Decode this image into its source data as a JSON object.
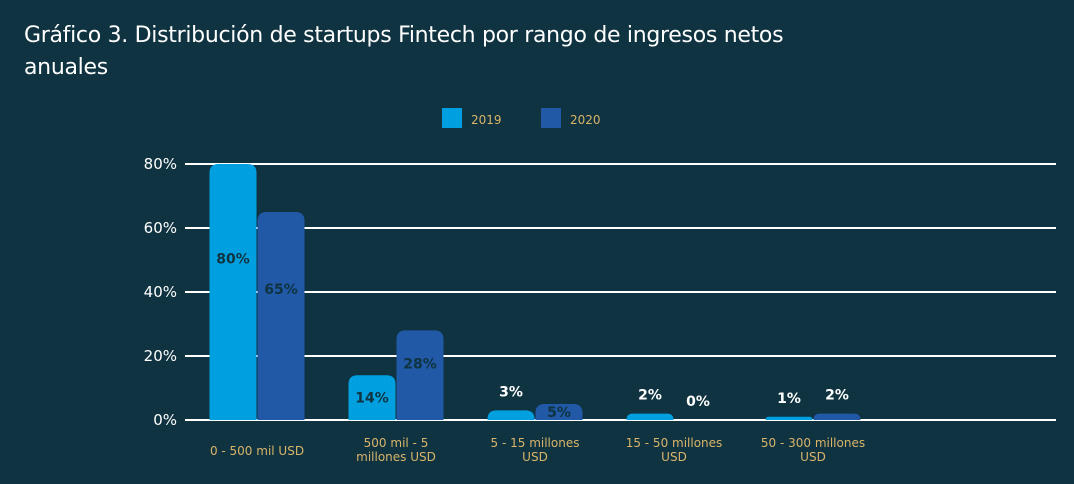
{
  "title": "Gráfico 3. Distribución de startups Fintech por rango de ingresos netos anuales",
  "colors": {
    "background": "#0f3340",
    "series_2019": "#00a0e0",
    "series_2020": "#2159a6",
    "category_text": "#d9b46a",
    "grid": "#ffffff",
    "label_inside": "#0f3340",
    "label_outside": "#ffffff"
  },
  "chart_data": {
    "type": "bar",
    "title": "Gráfico 3. Distribución de startups Fintech por rango de ingresos netos anuales",
    "xlabel": "",
    "ylabel": "",
    "ylim": [
      0,
      80
    ],
    "yticks": [
      "0%",
      "20%",
      "40%",
      "60%",
      "80%"
    ],
    "grid": true,
    "legend_position": "top-center",
    "categories": [
      [
        "0 - 500 mil USD"
      ],
      [
        "500 mil - 5",
        "millones USD"
      ],
      [
        "5 - 15 millones",
        "USD"
      ],
      [
        "15 - 50 millones",
        "USD"
      ],
      [
        "50 - 300 millones",
        "USD"
      ]
    ],
    "series": [
      {
        "name": "2019",
        "values": [
          80,
          14,
          3,
          2,
          1
        ],
        "labels": [
          "80%",
          "14%",
          "3%",
          "2%",
          "1%"
        ]
      },
      {
        "name": "2020",
        "values": [
          65,
          28,
          5,
          0,
          2
        ],
        "labels": [
          "65%",
          "28%",
          "5%",
          "0%",
          "2%"
        ]
      }
    ]
  }
}
